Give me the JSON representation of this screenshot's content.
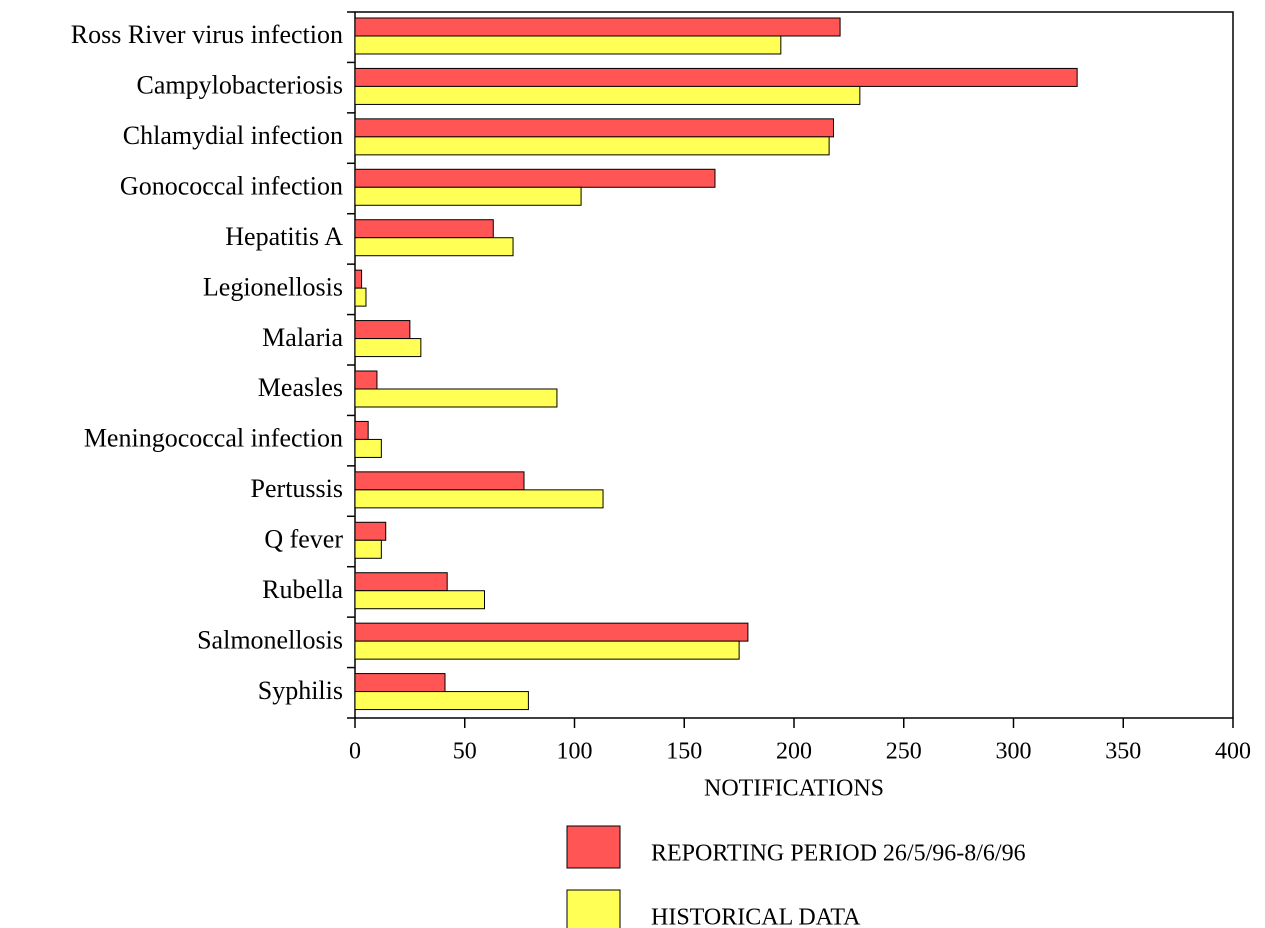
{
  "chart_data": {
    "type": "bar",
    "orientation": "horizontal",
    "x_label": "NOTIFICATIONS",
    "categories": [
      "Ross River virus infection",
      "Campylobacteriosis",
      "Chlamydial infection",
      "Gonococcal infection",
      "Hepatitis A",
      "Legionellosis",
      "Malaria",
      "Measles",
      "Meningococcal infection",
      "Pertussis",
      "Q fever",
      "Rubella",
      "Salmonellosis",
      "Syphilis"
    ],
    "series": [
      {
        "name": "REPORTING PERIOD 26/5/96-8/6/96",
        "color": "#ff5555",
        "values": [
          221,
          329,
          218,
          164,
          63,
          3,
          25,
          10,
          6,
          77,
          14,
          42,
          179,
          41
        ]
      },
      {
        "name": "HISTORICAL DATA",
        "color": "#ffff55",
        "values": [
          194,
          230,
          216,
          103,
          72,
          5,
          30,
          92,
          12,
          113,
          12,
          59,
          175,
          79
        ]
      }
    ],
    "xlim": [
      0,
      400
    ],
    "xticks": [
      0,
      50,
      100,
      150,
      200,
      250,
      300,
      350,
      400
    ]
  }
}
